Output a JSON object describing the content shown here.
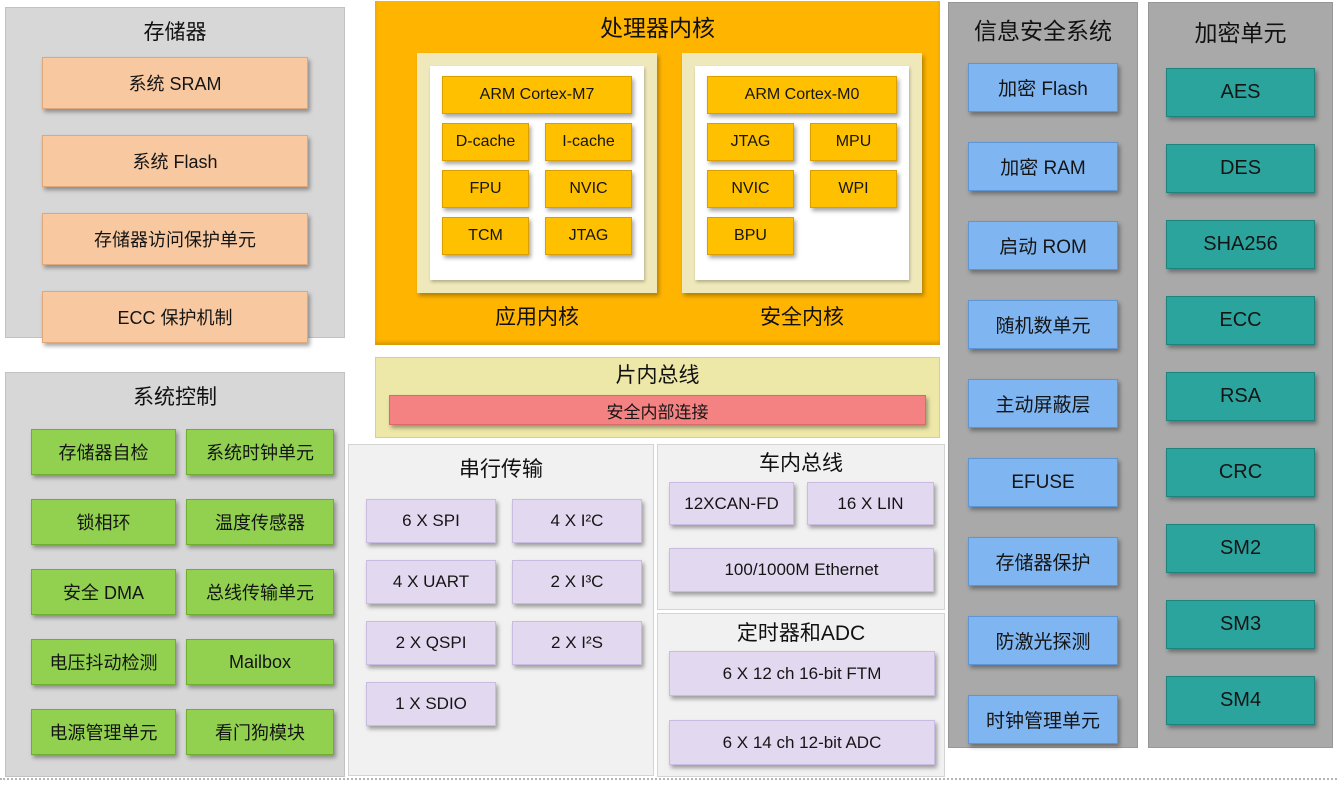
{
  "panels": {
    "memory": {
      "title": "存储器",
      "blocks": [
        "系统 SRAM",
        "系统 Flash",
        "存储器访问保护单元",
        "ECC 保护机制"
      ]
    },
    "system_control": {
      "title": "系统控制",
      "blocks": [
        "存储器自检",
        "系统时钟单元",
        "锁相环",
        "温度传感器",
        "安全 DMA",
        "总线传输单元",
        "电压抖动检测",
        "Mailbox",
        "电源管理单元",
        "看门狗模块"
      ]
    },
    "processor": {
      "title": "处理器内核",
      "app_core": {
        "label": "应用内核",
        "cpu": "ARM Cortex-M7",
        "blocks": [
          "D-cache",
          "I-cache",
          "FPU",
          "NVIC",
          "TCM",
          "JTAG"
        ]
      },
      "secure_core": {
        "label": "安全内核",
        "cpu": "ARM Cortex-M0",
        "blocks": [
          "JTAG",
          "MPU",
          "NVIC",
          "WPI",
          "BPU"
        ]
      }
    },
    "onchip_bus": {
      "title": "片内总线",
      "bar": "安全内部连接"
    },
    "serial": {
      "title": "串行传输",
      "blocks": [
        "6 X SPI",
        "4 X I²C",
        "4 X UART",
        "2 X I³C",
        "2 X QSPI",
        "2 X I²S",
        "1 X SDIO"
      ]
    },
    "vehicle_bus": {
      "title": "车内总线",
      "blocks": [
        "12XCAN-FD",
        "16 X LIN",
        "100/1000M Ethernet"
      ]
    },
    "timer_adc": {
      "title": "定时器和ADC",
      "blocks": [
        "6 X 12 ch 16-bit FTM",
        "6 X 14 ch 12-bit ADC"
      ]
    },
    "security_system": {
      "title": "信息安全系统",
      "blocks": [
        "加密 Flash",
        "加密 RAM",
        "启动 ROM",
        "随机数单元",
        "主动屏蔽层",
        "EFUSE",
        "存储器保护",
        "防激光探测",
        "时钟管理单元"
      ]
    },
    "crypto_unit": {
      "title": "加密单元",
      "blocks": [
        "AES",
        "DES",
        "SHA256",
        "ECC",
        "RSA",
        "CRC",
        "SM2",
        "SM3",
        "SM4"
      ]
    }
  },
  "colors": {
    "panel_light_gray": "#D7D7D7",
    "panel_dark_gray": "#A9A9A9",
    "memory_block_orange": "#F8C9A0",
    "control_block_green": "#92D050",
    "processor_panel_orange": "#FFB400",
    "core_block_gold": "#FFC000",
    "core_subpanel_cream": "#EFE8BA",
    "bus_panel_yellow": "#EDE8A8",
    "bus_bar_red": "#F58282",
    "io_block_purple": "#E2D9F0",
    "security_block_blue": "#7FB5F0",
    "crypto_block_teal": "#2BA49E"
  }
}
